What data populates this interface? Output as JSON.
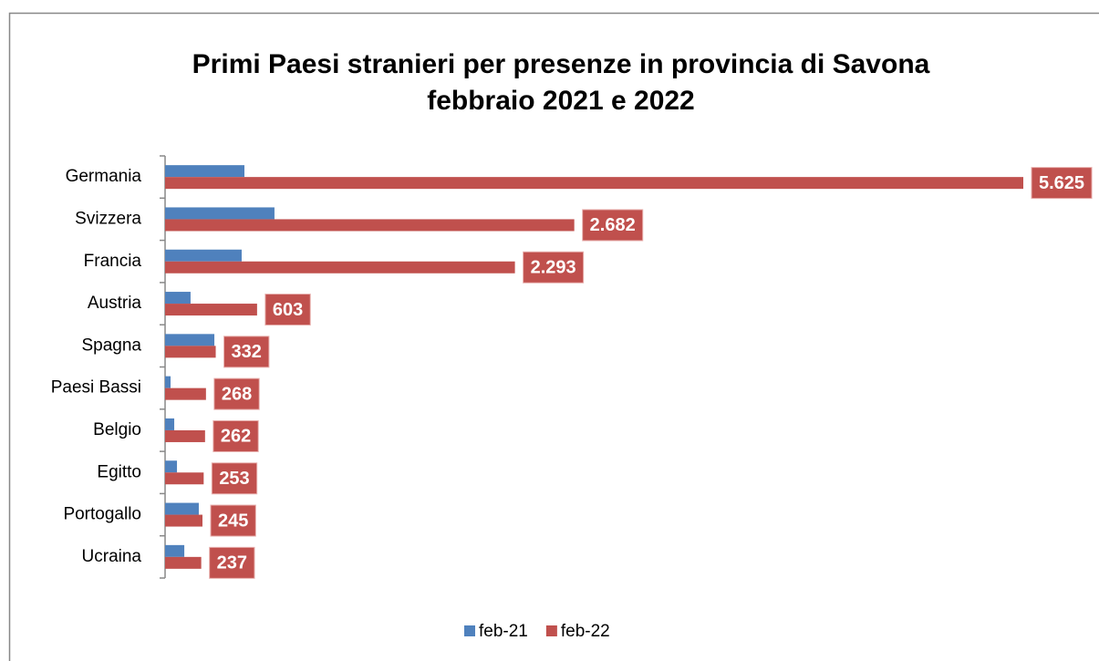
{
  "chart_data": {
    "type": "hbar",
    "title": "Primi Paesi stranieri per presenze in provincia di Savona",
    "subtitle": "febbraio 2021 e 2022",
    "categories": [
      "Germania",
      "Svizzera",
      "Francia",
      "Austria",
      "Spagna",
      "Paesi Bassi",
      "Belgio",
      "Egitto",
      "Portogallo",
      "Ucraina"
    ],
    "series": [
      {
        "name": "feb-21",
        "color": "#4f81bd",
        "values": [
          520,
          717,
          502,
          167,
          323,
          36,
          60,
          78,
          221,
          126
        ]
      },
      {
        "name": "feb-22",
        "color": "#c0504d",
        "values": [
          5625,
          2682,
          2293,
          603,
          332,
          268,
          262,
          253,
          245,
          237
        ],
        "value_labels": [
          "5.625",
          "2.682",
          "2.293",
          "603",
          "332",
          "268",
          "262",
          "253",
          "245",
          "237"
        ]
      }
    ],
    "xlim": [
      0,
      5625
    ],
    "legend": "bottom"
  }
}
